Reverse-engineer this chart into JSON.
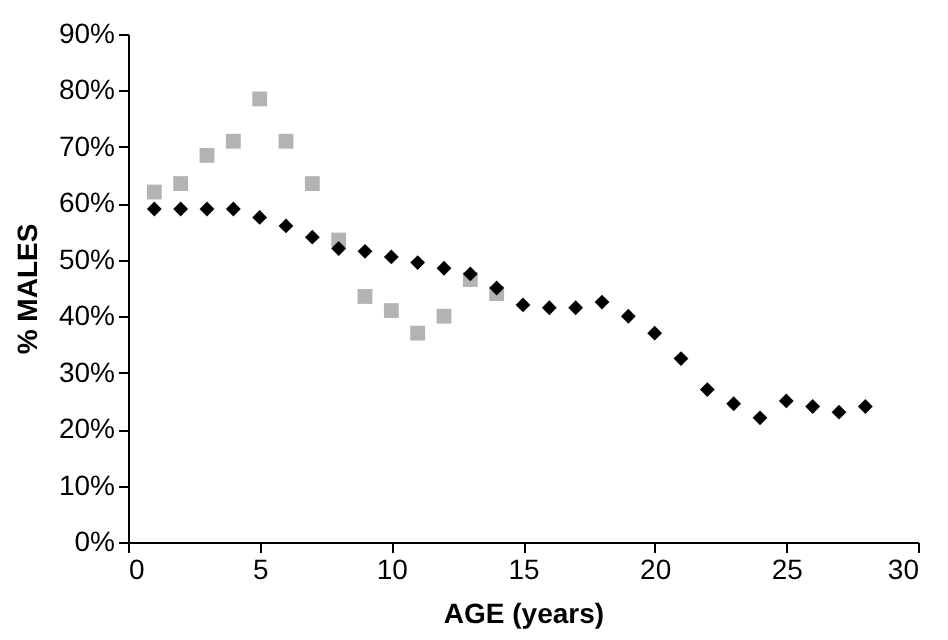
{
  "chart_data": {
    "type": "scatter",
    "xlabel": "AGE (years)",
    "ylabel": "% MALES",
    "xlim": [
      0,
      30
    ],
    "xticks": [
      0,
      5,
      10,
      15,
      20,
      25,
      30
    ],
    "ylim": [
      0,
      90
    ],
    "yticks": [
      {
        "value": 0,
        "label": "0%"
      },
      {
        "value": 10,
        "label": "10%"
      },
      {
        "value": 20,
        "label": "20%"
      },
      {
        "value": 30,
        "label": "30%"
      },
      {
        "value": 40,
        "label": "40%"
      },
      {
        "value": 50,
        "label": "50%"
      },
      {
        "value": 60,
        "label": "60%"
      },
      {
        "value": 70,
        "label": "70%"
      },
      {
        "value": 80,
        "label": "80%"
      },
      {
        "value": 90,
        "label": "90%"
      }
    ],
    "grid": false,
    "series": [
      {
        "color": "#b3b3b3",
        "marker": "square",
        "x": [
          1,
          2,
          3,
          4,
          5,
          6,
          7,
          8,
          9,
          10,
          11,
          12,
          13,
          14
        ],
        "values": [
          62,
          63.5,
          68.5,
          71,
          78.5,
          71,
          63.5,
          53.5,
          43.5,
          41,
          37,
          40,
          46.5,
          44
        ]
      },
      {
        "color": "#000000",
        "marker": "diamond",
        "x": [
          1,
          2,
          3,
          4,
          5,
          6,
          7,
          8,
          9,
          10,
          11,
          12,
          13,
          14,
          15,
          16,
          17,
          18,
          19,
          20,
          21,
          22,
          23,
          24,
          25,
          26,
          27,
          28
        ],
        "values": [
          59,
          59,
          59,
          59,
          57.5,
          56,
          54,
          52,
          51.5,
          50.5,
          49.5,
          48.5,
          47.5,
          45,
          42,
          41.5,
          41.5,
          42.5,
          40,
          37,
          32.5,
          27,
          24.5,
          22,
          25,
          24,
          23,
          24
        ]
      }
    ]
  }
}
